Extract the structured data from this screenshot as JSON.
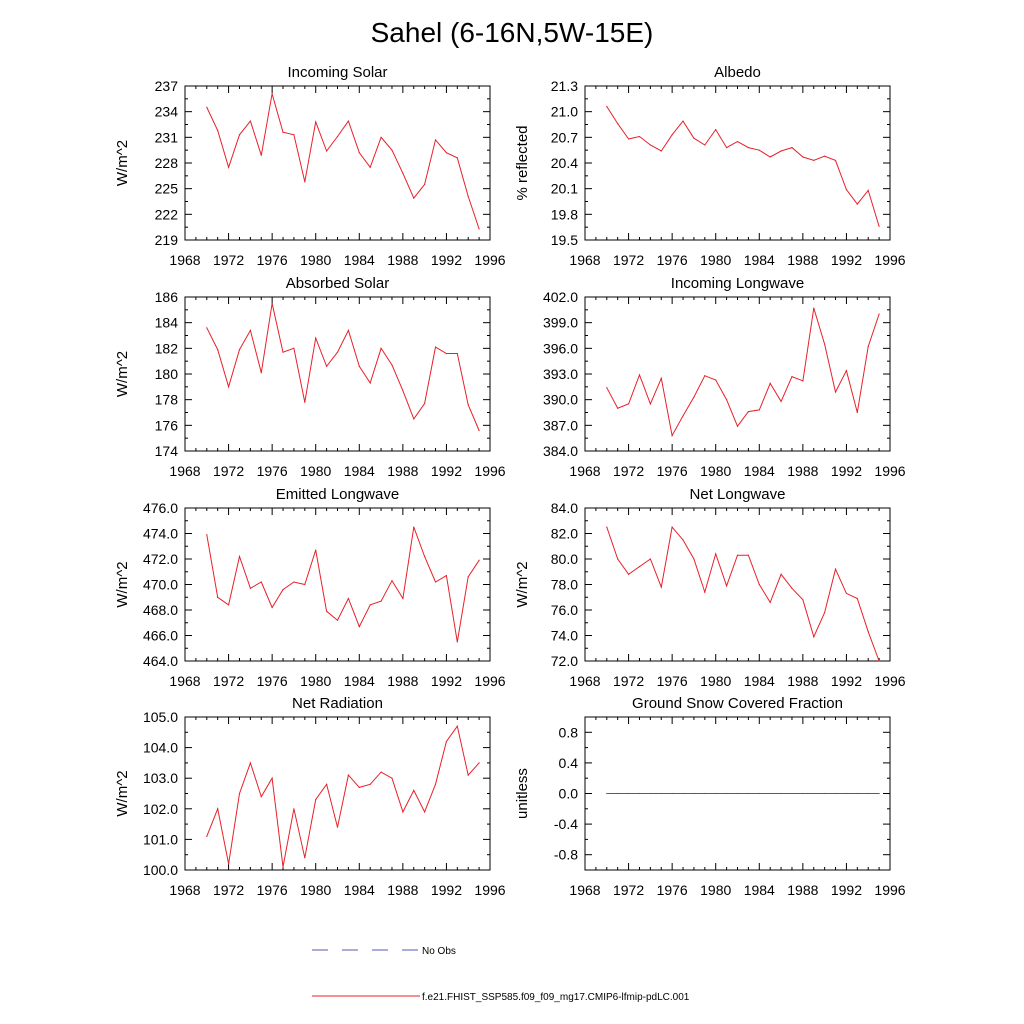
{
  "figure_title": "Sahel (6-16N,5W-15E)",
  "legend": {
    "obs_label": "No Obs",
    "obs_color": "#5a5ab4",
    "model_label": "f.e21.FHIST_SSP585.f09_f09_mg17.CMIP6-lfmip-pdLC.001",
    "model_color": "#e8202a"
  },
  "chart_data": [
    {
      "type": "line",
      "title": "Incoming Solar",
      "ylabel": "W/m^2",
      "xlim": [
        1968,
        1996
      ],
      "xticks": [
        1968,
        1972,
        1976,
        1980,
        1984,
        1988,
        1992,
        1996
      ],
      "xtick_labels": [
        "1968",
        "1972",
        "1976",
        "1980",
        "1984",
        "1988",
        "1992",
        "1996"
      ],
      "ylim": [
        219,
        237
      ],
      "yticks": [
        219,
        222,
        225,
        228,
        231,
        234,
        237
      ],
      "ytick_labels": [
        "219",
        "222",
        "225",
        "228",
        "231",
        "234",
        "237"
      ],
      "x": [
        1970,
        1971,
        1972,
        1973,
        1974,
        1975,
        1976,
        1977,
        1978,
        1979,
        1980,
        1981,
        1982,
        1983,
        1984,
        1985,
        1986,
        1987,
        1988,
        1989,
        1990,
        1991,
        1992,
        1993,
        1994,
        1995
      ],
      "y": [
        234.5,
        231.8,
        227.5,
        231.3,
        232.9,
        228.9,
        236.1,
        231.6,
        231.3,
        225.8,
        232.8,
        229.4,
        231.1,
        232.9,
        229.2,
        227.5,
        231.0,
        229.5,
        226.8,
        223.9,
        225.5,
        230.7,
        229.2,
        228.6,
        224.1,
        220.3
      ]
    },
    {
      "type": "line",
      "title": "Albedo",
      "ylabel": "% reflected",
      "xlim": [
        1968,
        1996
      ],
      "xticks": [
        1968,
        1972,
        1976,
        1980,
        1984,
        1988,
        1992,
        1996
      ],
      "xtick_labels": [
        "1968",
        "1972",
        "1976",
        "1980",
        "1984",
        "1988",
        "1992",
        "1996"
      ],
      "ylim": [
        19.5,
        21.3
      ],
      "yticks": [
        19.5,
        19.8,
        20.1,
        20.4,
        20.7,
        21.0,
        21.3
      ],
      "ytick_labels": [
        "19.5",
        "19.8",
        "20.1",
        "20.4",
        "20.7",
        "21.0",
        "21.3"
      ],
      "x": [
        1970,
        1971,
        1972,
        1973,
        1974,
        1975,
        1976,
        1977,
        1978,
        1979,
        1980,
        1981,
        1982,
        1983,
        1984,
        1985,
        1986,
        1987,
        1988,
        1989,
        1990,
        1991,
        1992,
        1993,
        1994,
        1995
      ],
      "y": [
        21.06,
        20.86,
        20.68,
        20.71,
        20.61,
        20.54,
        20.73,
        20.89,
        20.69,
        20.61,
        20.79,
        20.58,
        20.65,
        20.58,
        20.55,
        20.47,
        20.54,
        20.58,
        20.47,
        20.43,
        20.48,
        20.43,
        20.09,
        19.92,
        20.08,
        19.66
      ]
    },
    {
      "type": "line",
      "title": "Absorbed Solar",
      "ylabel": "W/m^2",
      "xlim": [
        1968,
        1996
      ],
      "xticks": [
        1968,
        1972,
        1976,
        1980,
        1984,
        1988,
        1992,
        1996
      ],
      "xtick_labels": [
        "1968",
        "1972",
        "1976",
        "1980",
        "1984",
        "1988",
        "1992",
        "1996"
      ],
      "ylim": [
        174,
        186
      ],
      "yticks": [
        174,
        176,
        178,
        180,
        182,
        184,
        186
      ],
      "ytick_labels": [
        "174",
        "176",
        "178",
        "180",
        "182",
        "184",
        "186"
      ],
      "x": [
        1970,
        1971,
        1972,
        1973,
        1974,
        1975,
        1976,
        1977,
        1978,
        1979,
        1980,
        1981,
        1982,
        1983,
        1984,
        1985,
        1986,
        1987,
        1988,
        1989,
        1990,
        1991,
        1992,
        1993,
        1994,
        1995
      ],
      "y": [
        183.6,
        181.9,
        179.0,
        181.9,
        183.4,
        180.1,
        185.5,
        181.7,
        182.0,
        177.8,
        182.8,
        180.6,
        181.7,
        183.4,
        180.6,
        179.3,
        182.0,
        180.7,
        178.7,
        176.5,
        177.7,
        182.1,
        181.6,
        181.6,
        177.6,
        175.6
      ]
    },
    {
      "type": "line",
      "title": "Incoming Longwave",
      "ylabel": "",
      "xlim": [
        1968,
        1996
      ],
      "xticks": [
        1968,
        1972,
        1976,
        1980,
        1984,
        1988,
        1992,
        1996
      ],
      "xtick_labels": [
        "1968",
        "1972",
        "1976",
        "1980",
        "1984",
        "1988",
        "1992",
        "1996"
      ],
      "ylim": [
        384.0,
        402.0
      ],
      "yticks": [
        384,
        387,
        390,
        393,
        396,
        399,
        402
      ],
      "ytick_labels": [
        "384.0",
        "387.0",
        "390.0",
        "393.0",
        "396.0",
        "399.0",
        "402.0"
      ],
      "x": [
        1970,
        1971,
        1972,
        1973,
        1974,
        1975,
        1976,
        1977,
        1978,
        1979,
        1980,
        1981,
        1982,
        1983,
        1984,
        1985,
        1986,
        1987,
        1988,
        1989,
        1990,
        1991,
        1992,
        1993,
        1994,
        1995
      ],
      "y": [
        391.4,
        389.0,
        389.5,
        392.9,
        389.5,
        392.5,
        385.8,
        388.1,
        390.3,
        392.8,
        392.3,
        390.0,
        386.9,
        388.6,
        388.8,
        391.9,
        389.8,
        392.7,
        392.2,
        400.7,
        396.5,
        390.9,
        393.4,
        388.5,
        396.2,
        400.0
      ]
    },
    {
      "type": "line",
      "title": "Emitted Longwave",
      "ylabel": "W/m^2",
      "xlim": [
        1968,
        1996
      ],
      "xticks": [
        1968,
        1972,
        1976,
        1980,
        1984,
        1988,
        1992,
        1996
      ],
      "xtick_labels": [
        "1968",
        "1972",
        "1976",
        "1980",
        "1984",
        "1988",
        "1992",
        "1996"
      ],
      "ylim": [
        464.0,
        476.0
      ],
      "yticks": [
        464,
        466,
        468,
        470,
        472,
        474,
        476
      ],
      "ytick_labels": [
        "464.0",
        "466.0",
        "468.0",
        "470.0",
        "472.0",
        "474.0",
        "476.0"
      ],
      "x": [
        1970,
        1971,
        1972,
        1973,
        1974,
        1975,
        1976,
        1977,
        1978,
        1979,
        1980,
        1981,
        1982,
        1983,
        1984,
        1985,
        1986,
        1987,
        1988,
        1989,
        1990,
        1991,
        1992,
        1993,
        1994,
        1995
      ],
      "y": [
        473.9,
        469.0,
        468.4,
        472.2,
        469.7,
        470.2,
        468.2,
        469.6,
        470.2,
        470.0,
        472.7,
        467.9,
        467.2,
        468.9,
        466.7,
        468.4,
        468.7,
        470.3,
        468.9,
        474.5,
        472.2,
        470.2,
        470.7,
        465.5,
        470.6,
        471.9
      ]
    },
    {
      "type": "line",
      "title": "Net Longwave",
      "ylabel": "W/m^2",
      "xlim": [
        1968,
        1996
      ],
      "xticks": [
        1968,
        1972,
        1976,
        1980,
        1984,
        1988,
        1992,
        1996
      ],
      "xtick_labels": [
        "1968",
        "1972",
        "1976",
        "1980",
        "1984",
        "1988",
        "1992",
        "1996"
      ],
      "ylim": [
        72.0,
        84.0
      ],
      "yticks": [
        72,
        74,
        76,
        78,
        80,
        82,
        84
      ],
      "ytick_labels": [
        "72.0",
        "74.0",
        "76.0",
        "78.0",
        "80.0",
        "82.0",
        "84.0"
      ],
      "x": [
        1970,
        1971,
        1972,
        1973,
        1974,
        1975,
        1976,
        1977,
        1978,
        1979,
        1980,
        1981,
        1982,
        1983,
        1984,
        1985,
        1986,
        1987,
        1988,
        1989,
        1990,
        1991,
        1992,
        1993,
        1994,
        1995
      ],
      "y": [
        82.5,
        80.0,
        78.8,
        79.4,
        80.0,
        77.8,
        82.5,
        81.5,
        80.0,
        77.4,
        80.4,
        77.9,
        80.3,
        80.3,
        78.0,
        76.6,
        78.8,
        77.7,
        76.8,
        73.9,
        75.8,
        79.2,
        77.3,
        76.9,
        74.3,
        72.0
      ]
    },
    {
      "type": "line",
      "title": "Net Radiation",
      "ylabel": "W/m^2",
      "xlim": [
        1968,
        1996
      ],
      "xticks": [
        1968,
        1972,
        1976,
        1980,
        1984,
        1988,
        1992,
        1996
      ],
      "xtick_labels": [
        "1968",
        "1972",
        "1976",
        "1980",
        "1984",
        "1988",
        "1992",
        "1996"
      ],
      "ylim": [
        100.0,
        105.0
      ],
      "yticks": [
        100,
        101,
        102,
        103,
        104,
        105
      ],
      "ytick_labels": [
        "100.0",
        "101.0",
        "102.0",
        "103.0",
        "104.0",
        "105.0"
      ],
      "x": [
        1970,
        1971,
        1972,
        1973,
        1974,
        1975,
        1976,
        1977,
        1978,
        1979,
        1980,
        1981,
        1982,
        1983,
        1984,
        1985,
        1986,
        1987,
        1988,
        1989,
        1990,
        1991,
        1992,
        1993,
        1994,
        1995
      ],
      "y": [
        101.1,
        102.0,
        100.2,
        102.5,
        103.5,
        102.4,
        103.0,
        100.1,
        102.0,
        100.4,
        102.3,
        102.8,
        101.4,
        103.1,
        102.7,
        102.8,
        103.2,
        103.0,
        101.9,
        102.6,
        101.9,
        102.8,
        104.2,
        104.7,
        103.1,
        103.5
      ]
    },
    {
      "type": "line",
      "title": "Ground Snow Covered Fraction",
      "ylabel": "unitless",
      "xlim": [
        1968,
        1996
      ],
      "xticks": [
        1968,
        1972,
        1976,
        1980,
        1984,
        1988,
        1992,
        1996
      ],
      "xtick_labels": [
        "1968",
        "1972",
        "1976",
        "1980",
        "1984",
        "1988",
        "1992",
        "1996"
      ],
      "ylim": [
        -1.0,
        1.0
      ],
      "yticks": [
        -0.8,
        -0.4,
        0.0,
        0.4,
        0.8
      ],
      "ytick_labels": [
        "-0.8",
        "-0.4",
        "0.0",
        "0.4",
        "0.8"
      ],
      "x": [
        1970,
        1971,
        1972,
        1973,
        1974,
        1975,
        1976,
        1977,
        1978,
        1979,
        1980,
        1981,
        1982,
        1983,
        1984,
        1985,
        1986,
        1987,
        1988,
        1989,
        1990,
        1991,
        1992,
        1993,
        1994,
        1995
      ],
      "y": [
        0.0,
        0.0,
        0.0,
        0.0,
        0.0,
        0.0,
        0.0,
        0.0,
        0.0,
        0.0,
        0.0,
        0.0,
        0.0,
        0.0,
        0.0,
        0.0,
        0.0,
        0.0,
        0.0,
        0.0,
        0.0,
        0.0,
        0.0,
        0.0,
        0.0,
        0.0
      ]
    }
  ]
}
